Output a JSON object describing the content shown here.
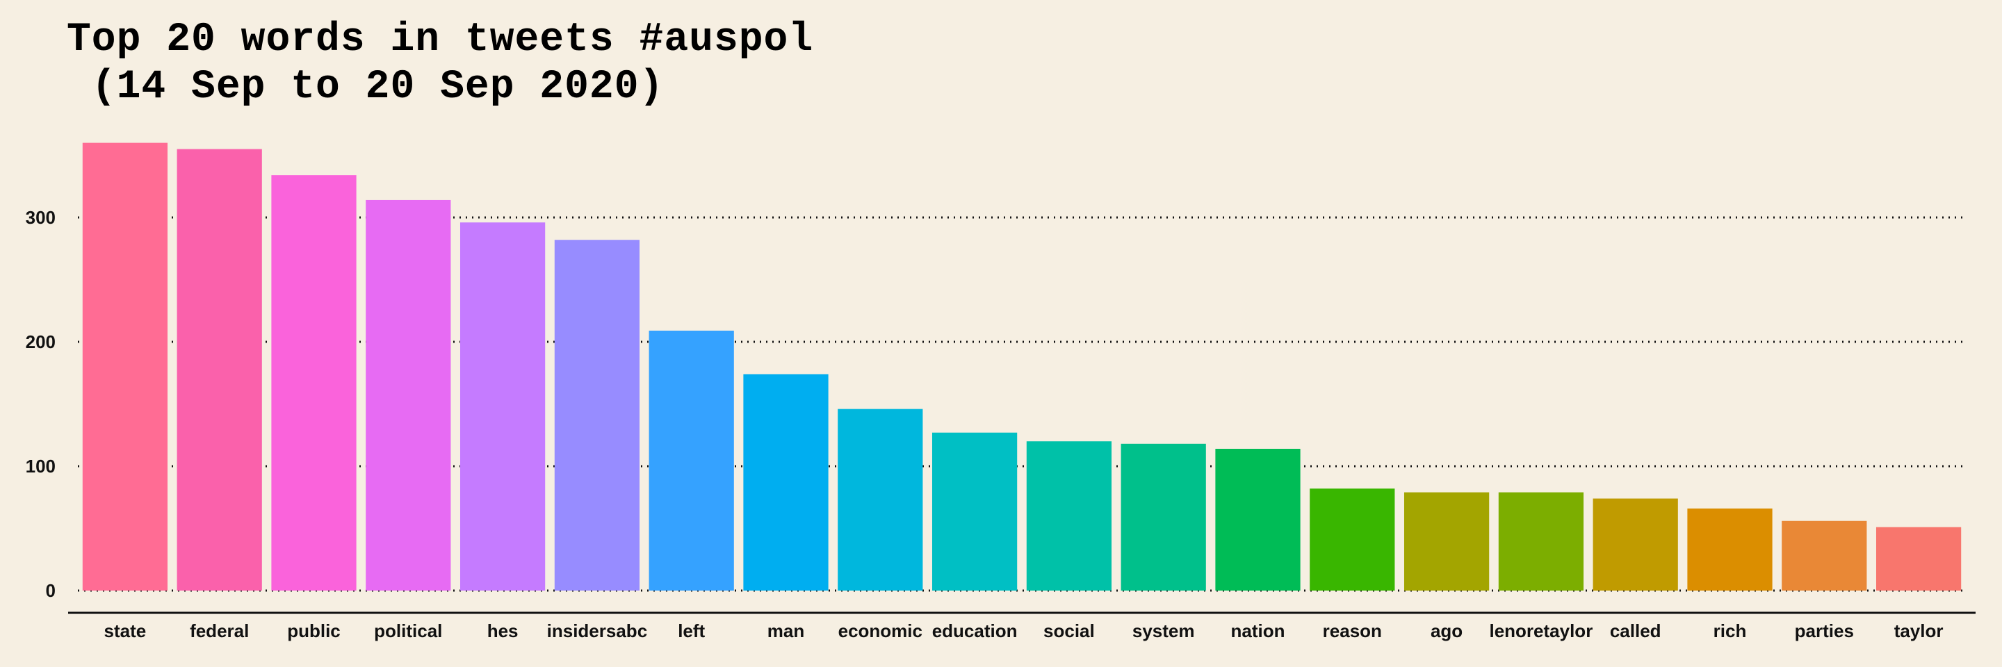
{
  "chart_data": {
    "type": "bar",
    "title": "Top 20 words in tweets #auspol\n (14 Sep to 20 Sep 2020)",
    "xlabel": "",
    "ylabel": "",
    "categories": [
      "state",
      "federal",
      "public",
      "political",
      "hes",
      "insidersabc",
      "left",
      "man",
      "economic",
      "education",
      "social",
      "system",
      "nation",
      "reason",
      "ago",
      "lenoretaylor",
      "called",
      "rich",
      "parties",
      "taylor"
    ],
    "values": [
      360,
      355,
      334,
      314,
      296,
      282,
      209,
      174,
      146,
      127,
      120,
      118,
      114,
      82,
      79,
      79,
      74,
      66,
      56,
      51
    ],
    "colors": [
      "#ff6c94",
      "#fa61ab",
      "#fa63db",
      "#e76bf3",
      "#c57bff",
      "#978cff",
      "#35a2ff",
      "#00aef0",
      "#00b7dd",
      "#00bfc4",
      "#00c1a8",
      "#00c08b",
      "#00bc56",
      "#39b600",
      "#a3a500",
      "#7cae00",
      "#c09b00",
      "#db8e00",
      "#e98836",
      "#f8766d"
    ],
    "ylim": [
      0,
      365
    ],
    "yticks": [
      0,
      100,
      200,
      300
    ],
    "grid": true,
    "legend": "none"
  }
}
